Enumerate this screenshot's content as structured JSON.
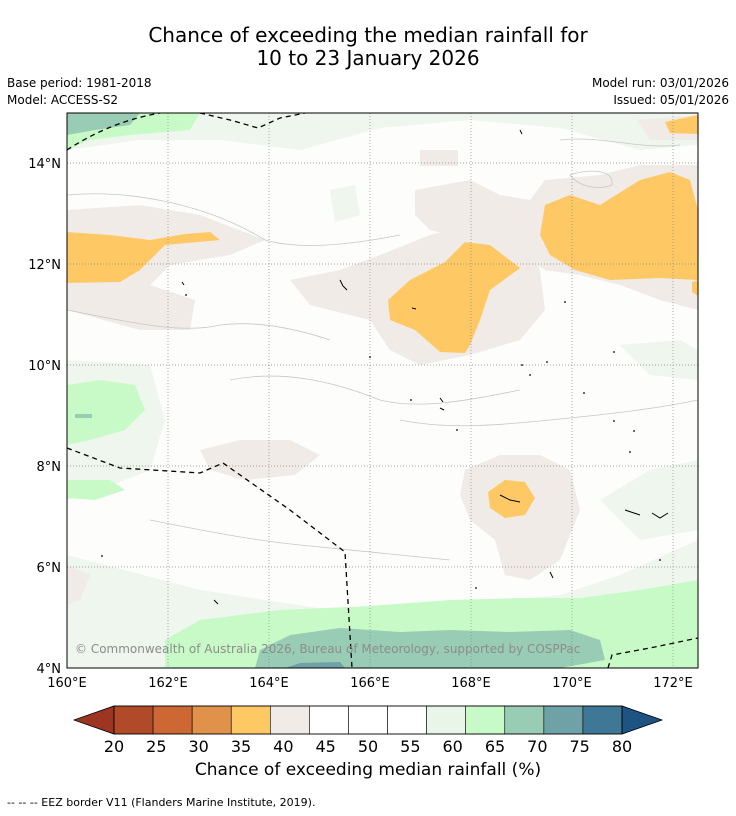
{
  "title": {
    "line1": "Chance of exceeding the median rainfall for",
    "line2": "10 to 23 January 2026"
  },
  "meta": {
    "base_period": "Base period: 1981-2018",
    "model": "Model: ACCESS-S2",
    "model_run": "Model run: 03/01/2026",
    "issued": "Issued: 05/01/2026"
  },
  "map": {
    "lat_labels": [
      "14°N",
      "12°N",
      "10°N",
      "8°N",
      "6°N",
      "4°N"
    ],
    "lon_labels": [
      "160°E",
      "162°E",
      "164°E",
      "166°E",
      "168°E",
      "170°E",
      "172°E"
    ],
    "copyright": "© Commonwealth of Australia 2026, Bureau of Meteorology, supported by COSPPac"
  },
  "colorbar": {
    "ticks": [
      "20",
      "25",
      "30",
      "35",
      "40",
      "45",
      "50",
      "55",
      "60",
      "65",
      "70",
      "75",
      "80"
    ],
    "under_color": "#9e3522",
    "over_color": "#1d5484",
    "colors": [
      "#b14a28",
      "#cd6734",
      "#e0914a",
      "#fec965",
      "#f0ebe6",
      "#ffffff",
      "#ffffff",
      "#ffffff",
      "#e9f5e9",
      "#c8fac8",
      "#99ccb5",
      "#6fa2a7",
      "#3f7796"
    ],
    "title": "Chance of exceeding median rainfall (%)"
  },
  "footer": {
    "legend": "--  --  -- EEZ border V11 (Flanders Marine Institute, 2019)."
  }
}
